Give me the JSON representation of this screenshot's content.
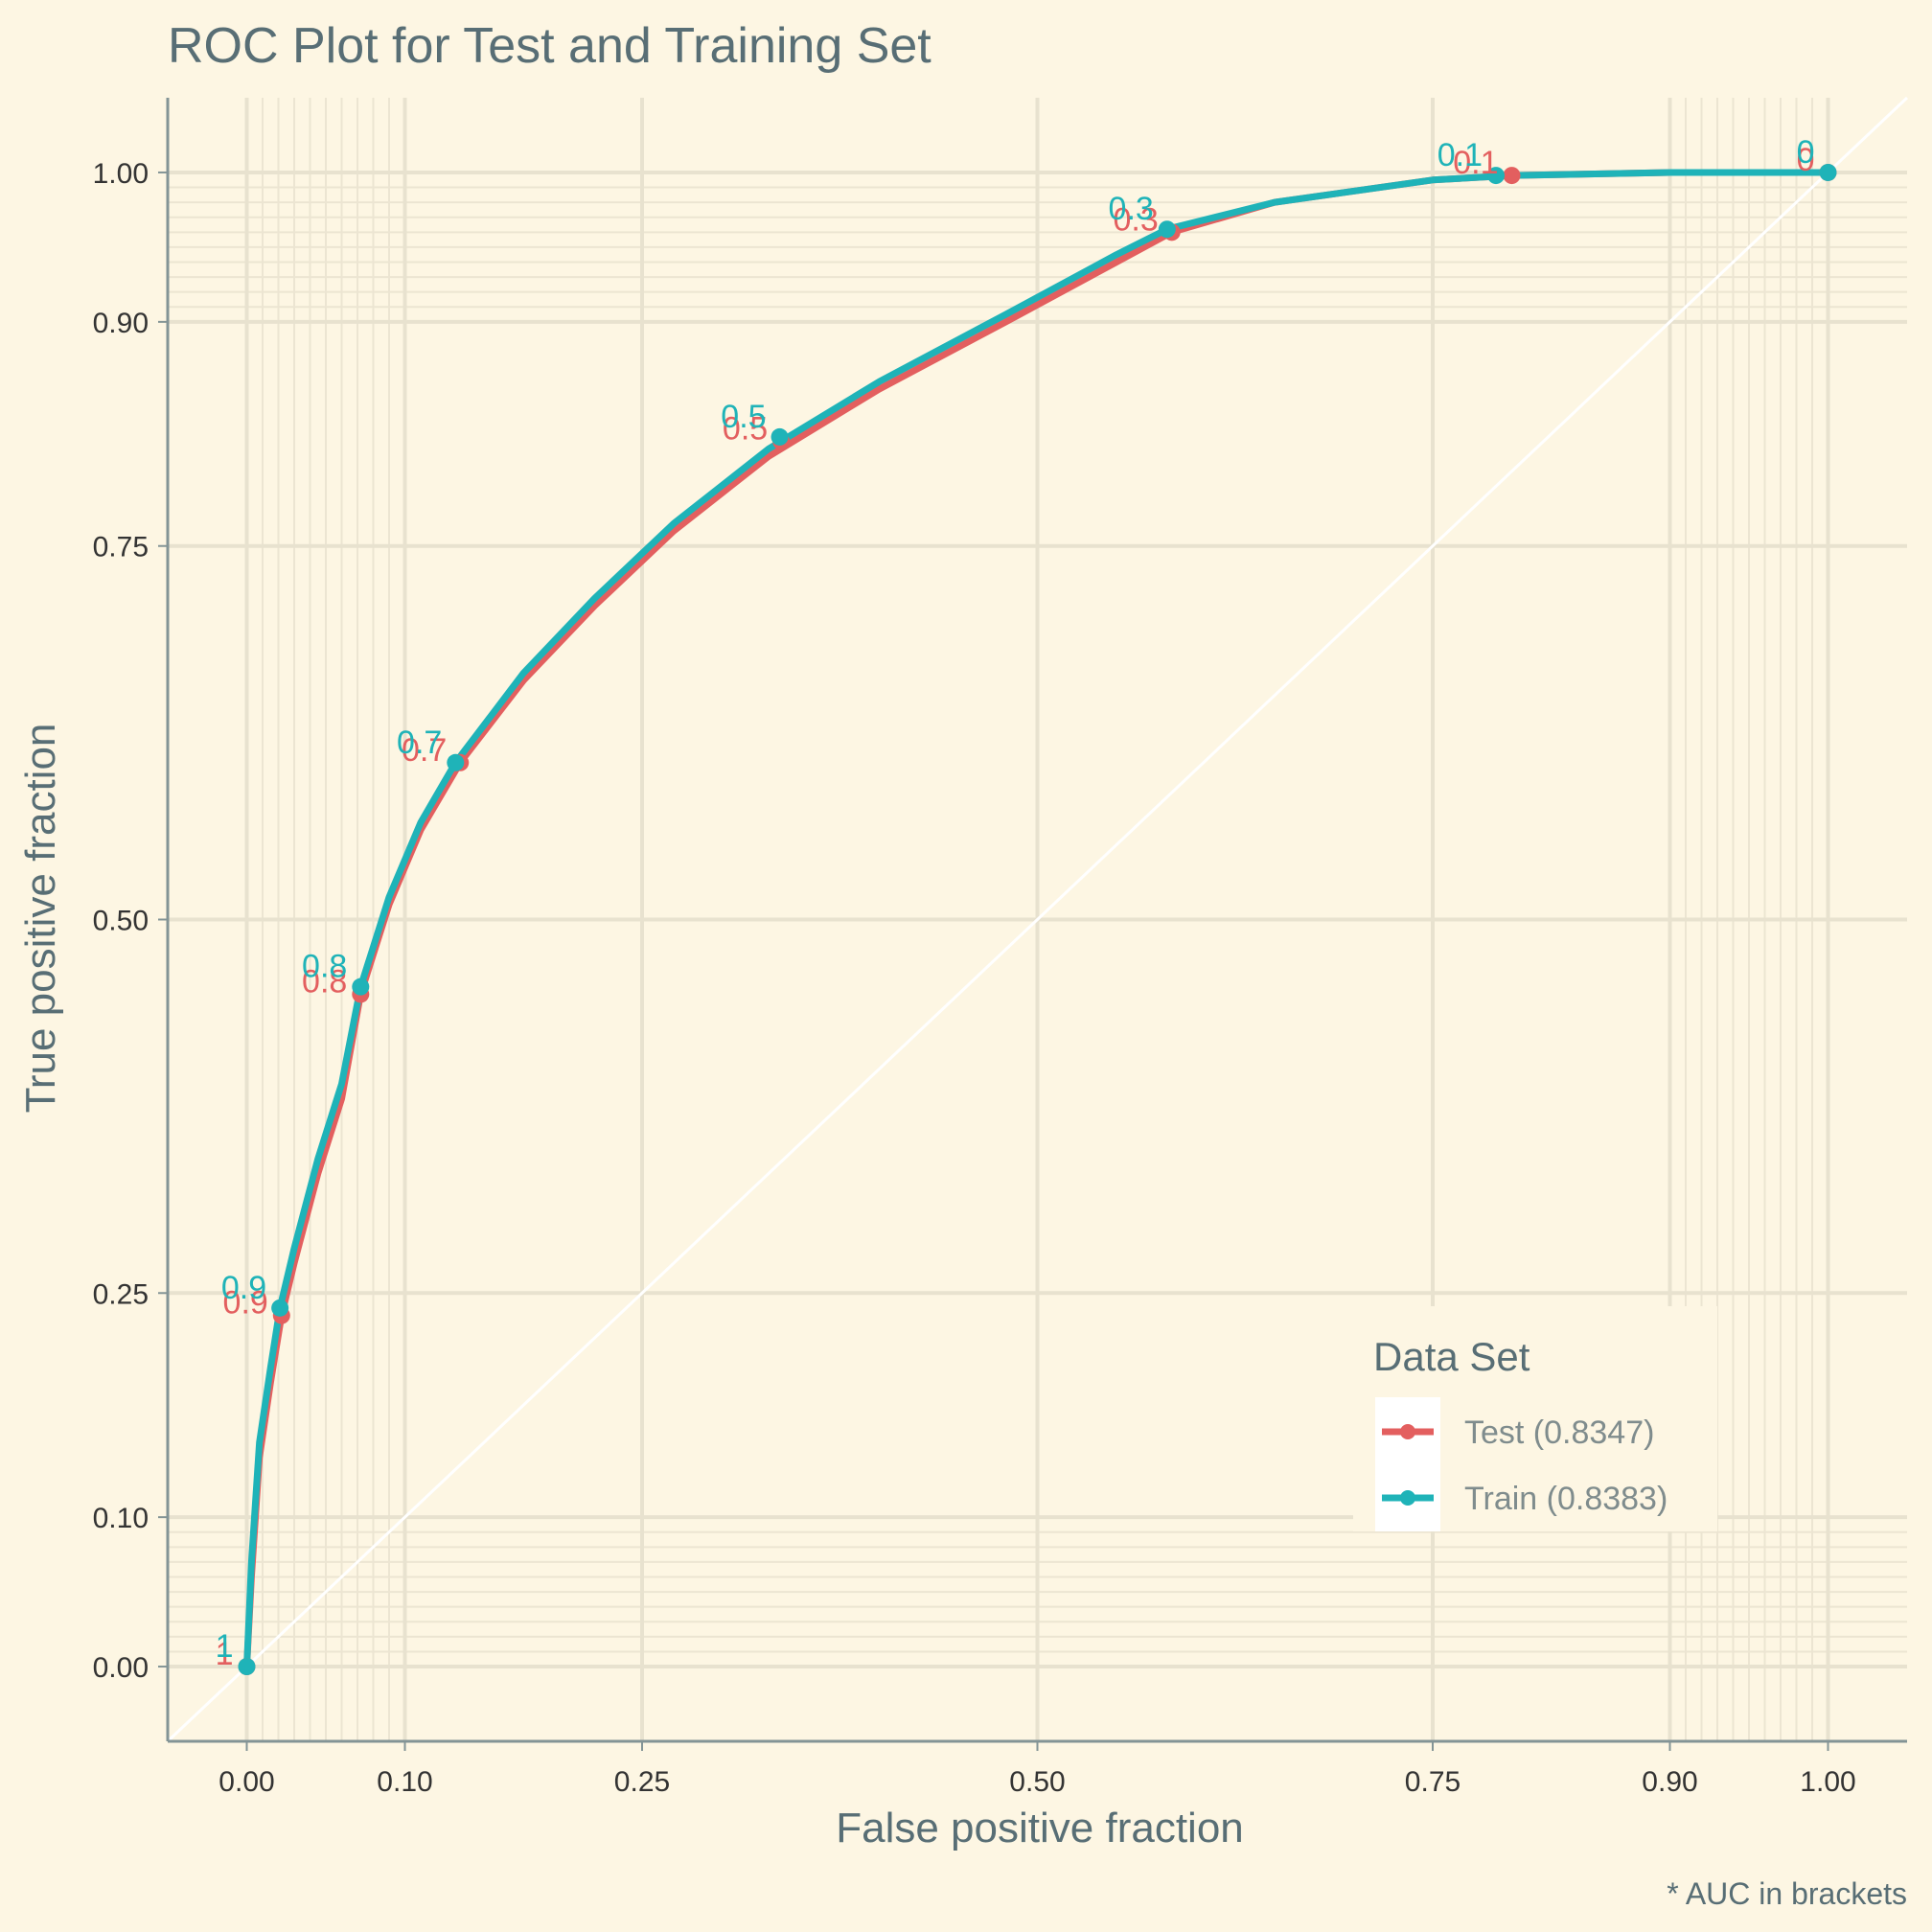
{
  "chart_data": {
    "type": "line",
    "title": "ROC Plot for Test and Training Set",
    "xlabel": "False positive fraction",
    "ylabel": "True positive fraction",
    "caption": "* AUC in brackets",
    "xlim": [
      -0.05,
      1.05
    ],
    "ylim": [
      -0.05,
      1.05
    ],
    "x_ticks": [
      0.0,
      0.1,
      0.25,
      0.5,
      0.75,
      0.9,
      1.0
    ],
    "x_tick_labels": [
      "0.00",
      "0.10",
      "0.25",
      "0.50",
      "0.75",
      "0.90",
      "1.00"
    ],
    "y_ticks": [
      0.0,
      0.1,
      0.25,
      0.5,
      0.75,
      0.9,
      1.0
    ],
    "y_tick_labels": [
      "0.00",
      "0.10",
      "0.25",
      "0.50",
      "0.75",
      "0.90",
      "1.00"
    ],
    "grid": true,
    "reference_line": "diagonal",
    "legend": {
      "title": "Data Set",
      "position": "bottom-right"
    },
    "series": [
      {
        "name": "Test (0.8347)",
        "color": "#e35f5f",
        "points": [
          [
            0.0,
            0.0
          ],
          [
            0.003,
            0.06
          ],
          [
            0.008,
            0.14
          ],
          [
            0.015,
            0.19
          ],
          [
            0.022,
            0.235
          ],
          [
            0.03,
            0.27
          ],
          [
            0.045,
            0.33
          ],
          [
            0.06,
            0.38
          ],
          [
            0.072,
            0.45
          ],
          [
            0.09,
            0.51
          ],
          [
            0.11,
            0.56
          ],
          [
            0.135,
            0.605
          ],
          [
            0.175,
            0.66
          ],
          [
            0.22,
            0.71
          ],
          [
            0.27,
            0.76
          ],
          [
            0.33,
            0.81
          ],
          [
            0.4,
            0.855
          ],
          [
            0.48,
            0.9
          ],
          [
            0.55,
            0.94
          ],
          [
            0.585,
            0.96
          ],
          [
            0.65,
            0.98
          ],
          [
            0.75,
            0.995
          ],
          [
            0.8,
            0.998
          ],
          [
            0.9,
            1.0
          ],
          [
            1.0,
            1.0
          ]
        ],
        "threshold_points": [
          {
            "x": 0.0,
            "y": 0.0,
            "label": "1"
          },
          {
            "x": 0.022,
            "y": 0.235,
            "label": "0.9"
          },
          {
            "x": 0.072,
            "y": 0.45,
            "label": "0.8"
          },
          {
            "x": 0.135,
            "y": 0.605,
            "label": "0.7"
          },
          {
            "x": 0.338,
            "y": 0.82,
            "label": "0.5"
          },
          {
            "x": 0.585,
            "y": 0.96,
            "label": "0.3"
          },
          {
            "x": 0.8,
            "y": 0.998,
            "label": "0.1"
          },
          {
            "x": 1.0,
            "y": 1.0,
            "label": "0"
          }
        ]
      },
      {
        "name": "Train (0.8383)",
        "color": "#1fb3b8",
        "points": [
          [
            0.0,
            0.0
          ],
          [
            0.003,
            0.07
          ],
          [
            0.008,
            0.15
          ],
          [
            0.015,
            0.2
          ],
          [
            0.021,
            0.24
          ],
          [
            0.03,
            0.28
          ],
          [
            0.045,
            0.34
          ],
          [
            0.06,
            0.39
          ],
          [
            0.072,
            0.455
          ],
          [
            0.09,
            0.515
          ],
          [
            0.11,
            0.565
          ],
          [
            0.132,
            0.605
          ],
          [
            0.175,
            0.665
          ],
          [
            0.22,
            0.715
          ],
          [
            0.27,
            0.765
          ],
          [
            0.33,
            0.815
          ],
          [
            0.4,
            0.86
          ],
          [
            0.48,
            0.905
          ],
          [
            0.55,
            0.945
          ],
          [
            0.582,
            0.962
          ],
          [
            0.65,
            0.98
          ],
          [
            0.75,
            0.995
          ],
          [
            0.8,
            0.998
          ],
          [
            0.9,
            1.0
          ],
          [
            1.0,
            1.0
          ]
        ],
        "threshold_points": [
          {
            "x": 0.0,
            "y": 0.0,
            "label": "1"
          },
          {
            "x": 0.021,
            "y": 0.24,
            "label": "0.9"
          },
          {
            "x": 0.072,
            "y": 0.455,
            "label": "0.8"
          },
          {
            "x": 0.132,
            "y": 0.605,
            "label": "0.7"
          },
          {
            "x": 0.337,
            "y": 0.823,
            "label": "0.5"
          },
          {
            "x": 0.582,
            "y": 0.962,
            "label": "0.3"
          },
          {
            "x": 0.79,
            "y": 0.998,
            "label": "0.1"
          },
          {
            "x": 1.0,
            "y": 1.0,
            "label": "0"
          }
        ]
      }
    ]
  }
}
